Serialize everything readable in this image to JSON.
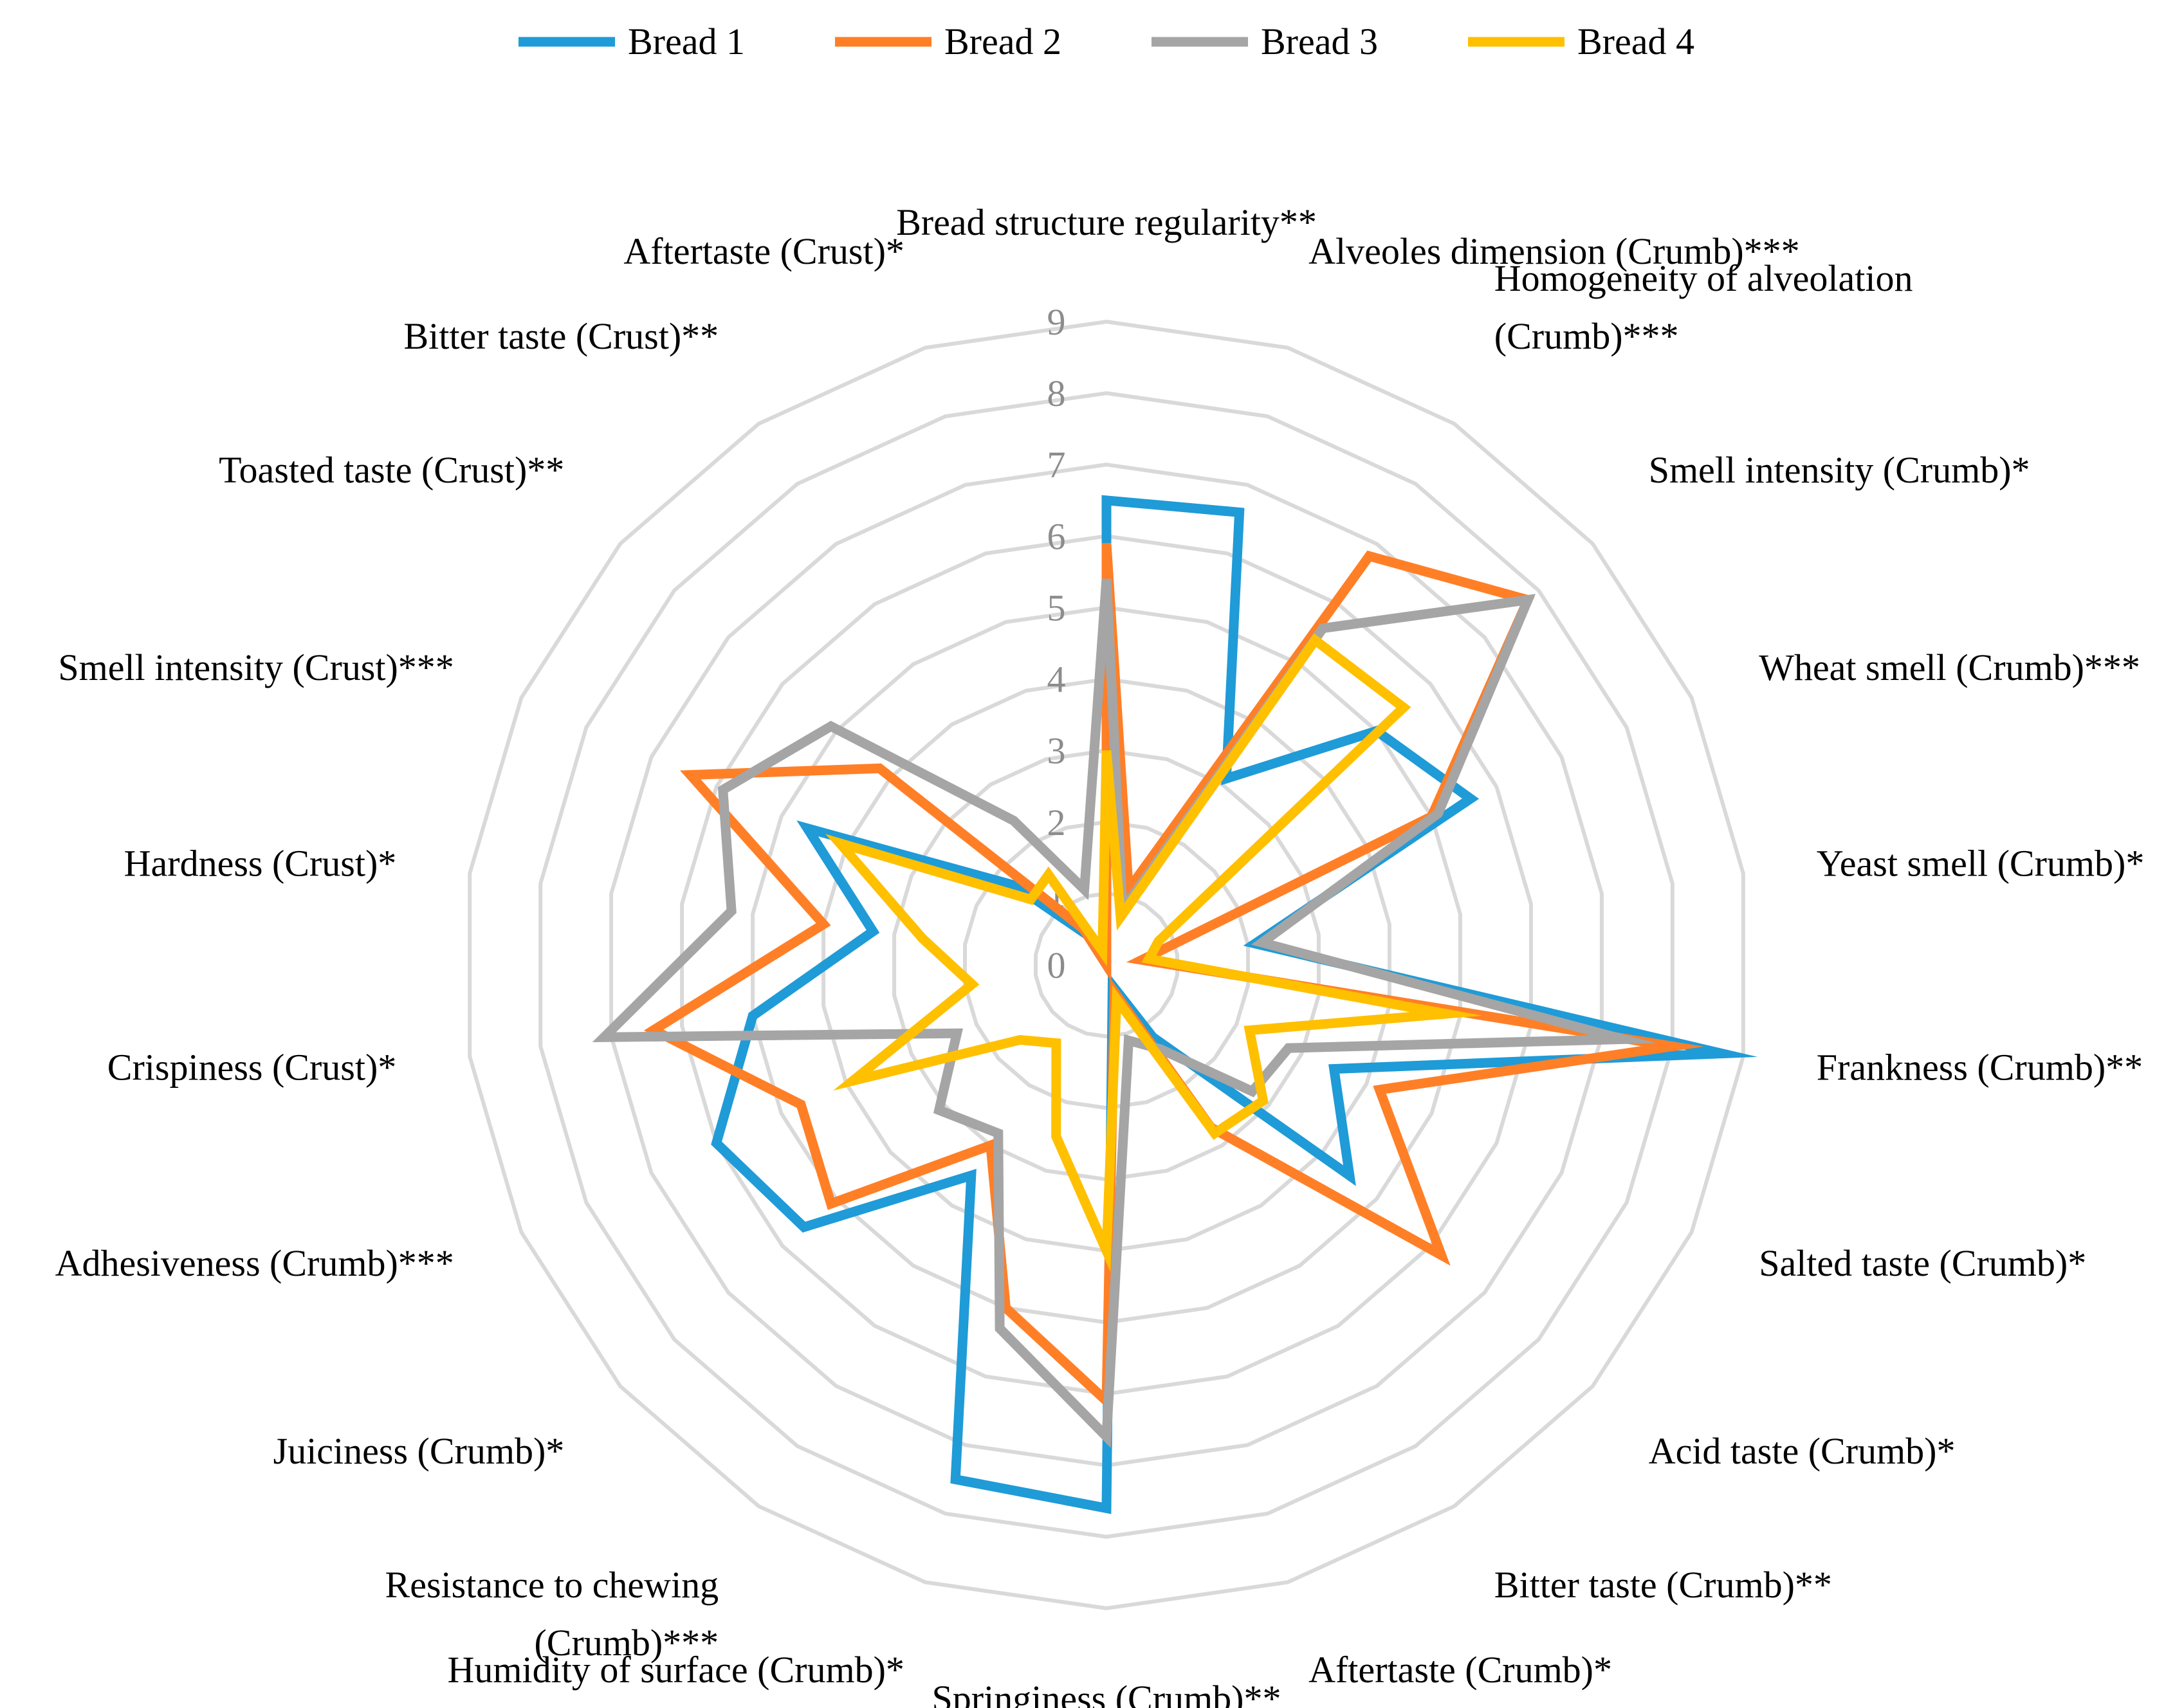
{
  "chart_data": {
    "type": "radar",
    "r_min": 0,
    "r_max": 9,
    "r_ticks": [
      "0",
      "1",
      "2",
      "3",
      "4",
      "5",
      "6",
      "7",
      "8",
      "9"
    ],
    "legend_position": "top",
    "grid": true,
    "axes": [
      {
        "label": [
          "Bread structure regularity**"
        ]
      },
      {
        "label": [
          "Alveoles dimension (Crumb)***"
        ]
      },
      {
        "label": [
          "Homogeneity  of alveolation",
          "(Crumb)***"
        ]
      },
      {
        "label": [
          "Smell intensity (Crumb)*"
        ]
      },
      {
        "label": [
          "Wheat smell (Crumb)***"
        ]
      },
      {
        "label": [
          "Yeast smell (Crumb)*"
        ]
      },
      {
        "label": [
          "Frankness (Crumb)**"
        ]
      },
      {
        "label": [
          "Salted taste (Crumb)*"
        ]
      },
      {
        "label": [
          "Acid taste (Crumb)*"
        ]
      },
      {
        "label": [
          "Bitter taste (Crumb)**"
        ]
      },
      {
        "label": [
          "Aftertaste (Crumb)*"
        ]
      },
      {
        "label": [
          "Springiness (Crumb)**"
        ]
      },
      {
        "label": [
          "Humidity of surface (Crumb)*"
        ]
      },
      {
        "label": [
          "Resistance to chewing",
          "(Crumb)***"
        ]
      },
      {
        "label": [
          "Juiciness (Crumb)*"
        ]
      },
      {
        "label": [
          "Adhesiveness (Crumb)***"
        ]
      },
      {
        "label": [
          "Crispiness (Crust)*"
        ]
      },
      {
        "label": [
          "Hardness (Crust)*"
        ]
      },
      {
        "label": [
          "Smell intensity (Crust)***"
        ]
      },
      {
        "label": [
          "Toasted taste (Crust)**"
        ]
      },
      {
        "label": [
          "Bitter taste (Crust)**"
        ]
      },
      {
        "label": [
          "Aftertaste (Crust)*"
        ]
      }
    ],
    "series": [
      {
        "name": "Bread 1",
        "color": "#1f9bd7",
        "values": [
          6.5,
          6.6,
          3.1,
          5.0,
          5.6,
          2.1,
          8.7,
          3.5,
          4.5,
          1.2,
          0.3,
          7.6,
          7.5,
          3.5,
          5.6,
          6.0,
          5.0,
          3.3,
          4.6,
          1.7,
          0.5,
          0.0
        ]
      },
      {
        "name": "Bread 2",
        "color": "#ff7f27",
        "values": [
          5.9,
          1.1,
          6.8,
          7.8,
          5.0,
          0.5,
          8.0,
          4.2,
          6.2,
          2.7,
          0.4,
          6.1,
          5.0,
          3.0,
          5.1,
          4.7,
          6.4,
          4.0,
          6.4,
          4.2,
          0.6,
          0.0
        ]
      },
      {
        "name": "Bread 3",
        "color": "#a5a5a5",
        "values": [
          5.4,
          0.8,
          5.6,
          7.8,
          5.1,
          2.2,
          7.3,
          2.8,
          2.7,
          1.4,
          1.1,
          6.6,
          5.3,
          2.8,
          3.1,
          2.3,
          7.1,
          5.3,
          5.9,
          5.1,
          2.4,
          1.1
        ]
      },
      {
        "name": "Bread 4",
        "color": "#ffc000",
        "values": [
          3.0,
          0.7,
          5.4,
          5.5,
          0.8,
          0.6,
          4.8,
          2.2,
          2.9,
          2.8,
          0.5,
          4.0,
          2.5,
          1.3,
          1.6,
          3.9,
          1.9,
          2.6,
          4.1,
          1.4,
          1.5,
          0.2
        ]
      }
    ]
  }
}
